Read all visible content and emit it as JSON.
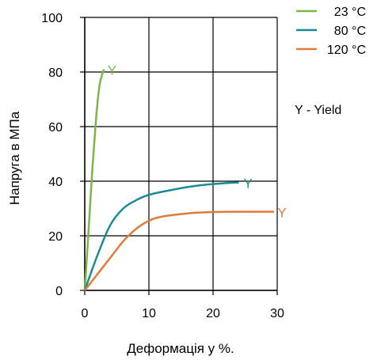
{
  "chart_data": {
    "type": "line",
    "title": "",
    "xlabel": "Деформація у %.",
    "ylabel": "Напруга в МПа",
    "xlim": [
      0,
      30
    ],
    "ylim": [
      0,
      100
    ],
    "xticks": [
      0,
      10,
      20,
      30
    ],
    "yticks": [
      0,
      20,
      40,
      60,
      80,
      100
    ],
    "xtick_labels": [
      "0",
      "10",
      "20",
      "30"
    ],
    "ytick_labels": [
      "0",
      "20",
      "40",
      "60",
      "80",
      "100"
    ],
    "grid": true,
    "legend_position": "top-right",
    "yield_note": "Y - Yield",
    "series": [
      {
        "name": "23 °C",
        "color": "#7ab648",
        "x": [
          0,
          0.6,
          1.2,
          1.8,
          2.3,
          2.7,
          3.0
        ],
        "y": [
          0,
          22,
          45,
          64,
          75,
          79,
          81
        ],
        "yield_marker": "Y",
        "yield_point": [
          3.3,
          81
        ]
      },
      {
        "name": "80 °C",
        "color": "#1b8a95",
        "x": [
          0,
          2,
          4,
          6,
          8,
          10,
          14,
          18,
          22,
          24
        ],
        "y": [
          0,
          13,
          24,
          30,
          33,
          35,
          37,
          38.5,
          39.3,
          39.5
        ],
        "yield_marker": "Y",
        "yield_point": [
          24.5,
          39.5
        ]
      },
      {
        "name": "120 °C",
        "color": "#e07b39",
        "x": [
          0,
          2,
          4,
          6,
          8,
          10,
          12,
          16,
          20,
          24,
          28,
          29.5
        ],
        "y": [
          0,
          6,
          12,
          18,
          22.5,
          25.5,
          27,
          28.2,
          28.7,
          28.8,
          28.8,
          28.8
        ],
        "yield_marker": "Y",
        "yield_point": [
          29.8,
          28.8
        ]
      }
    ]
  }
}
